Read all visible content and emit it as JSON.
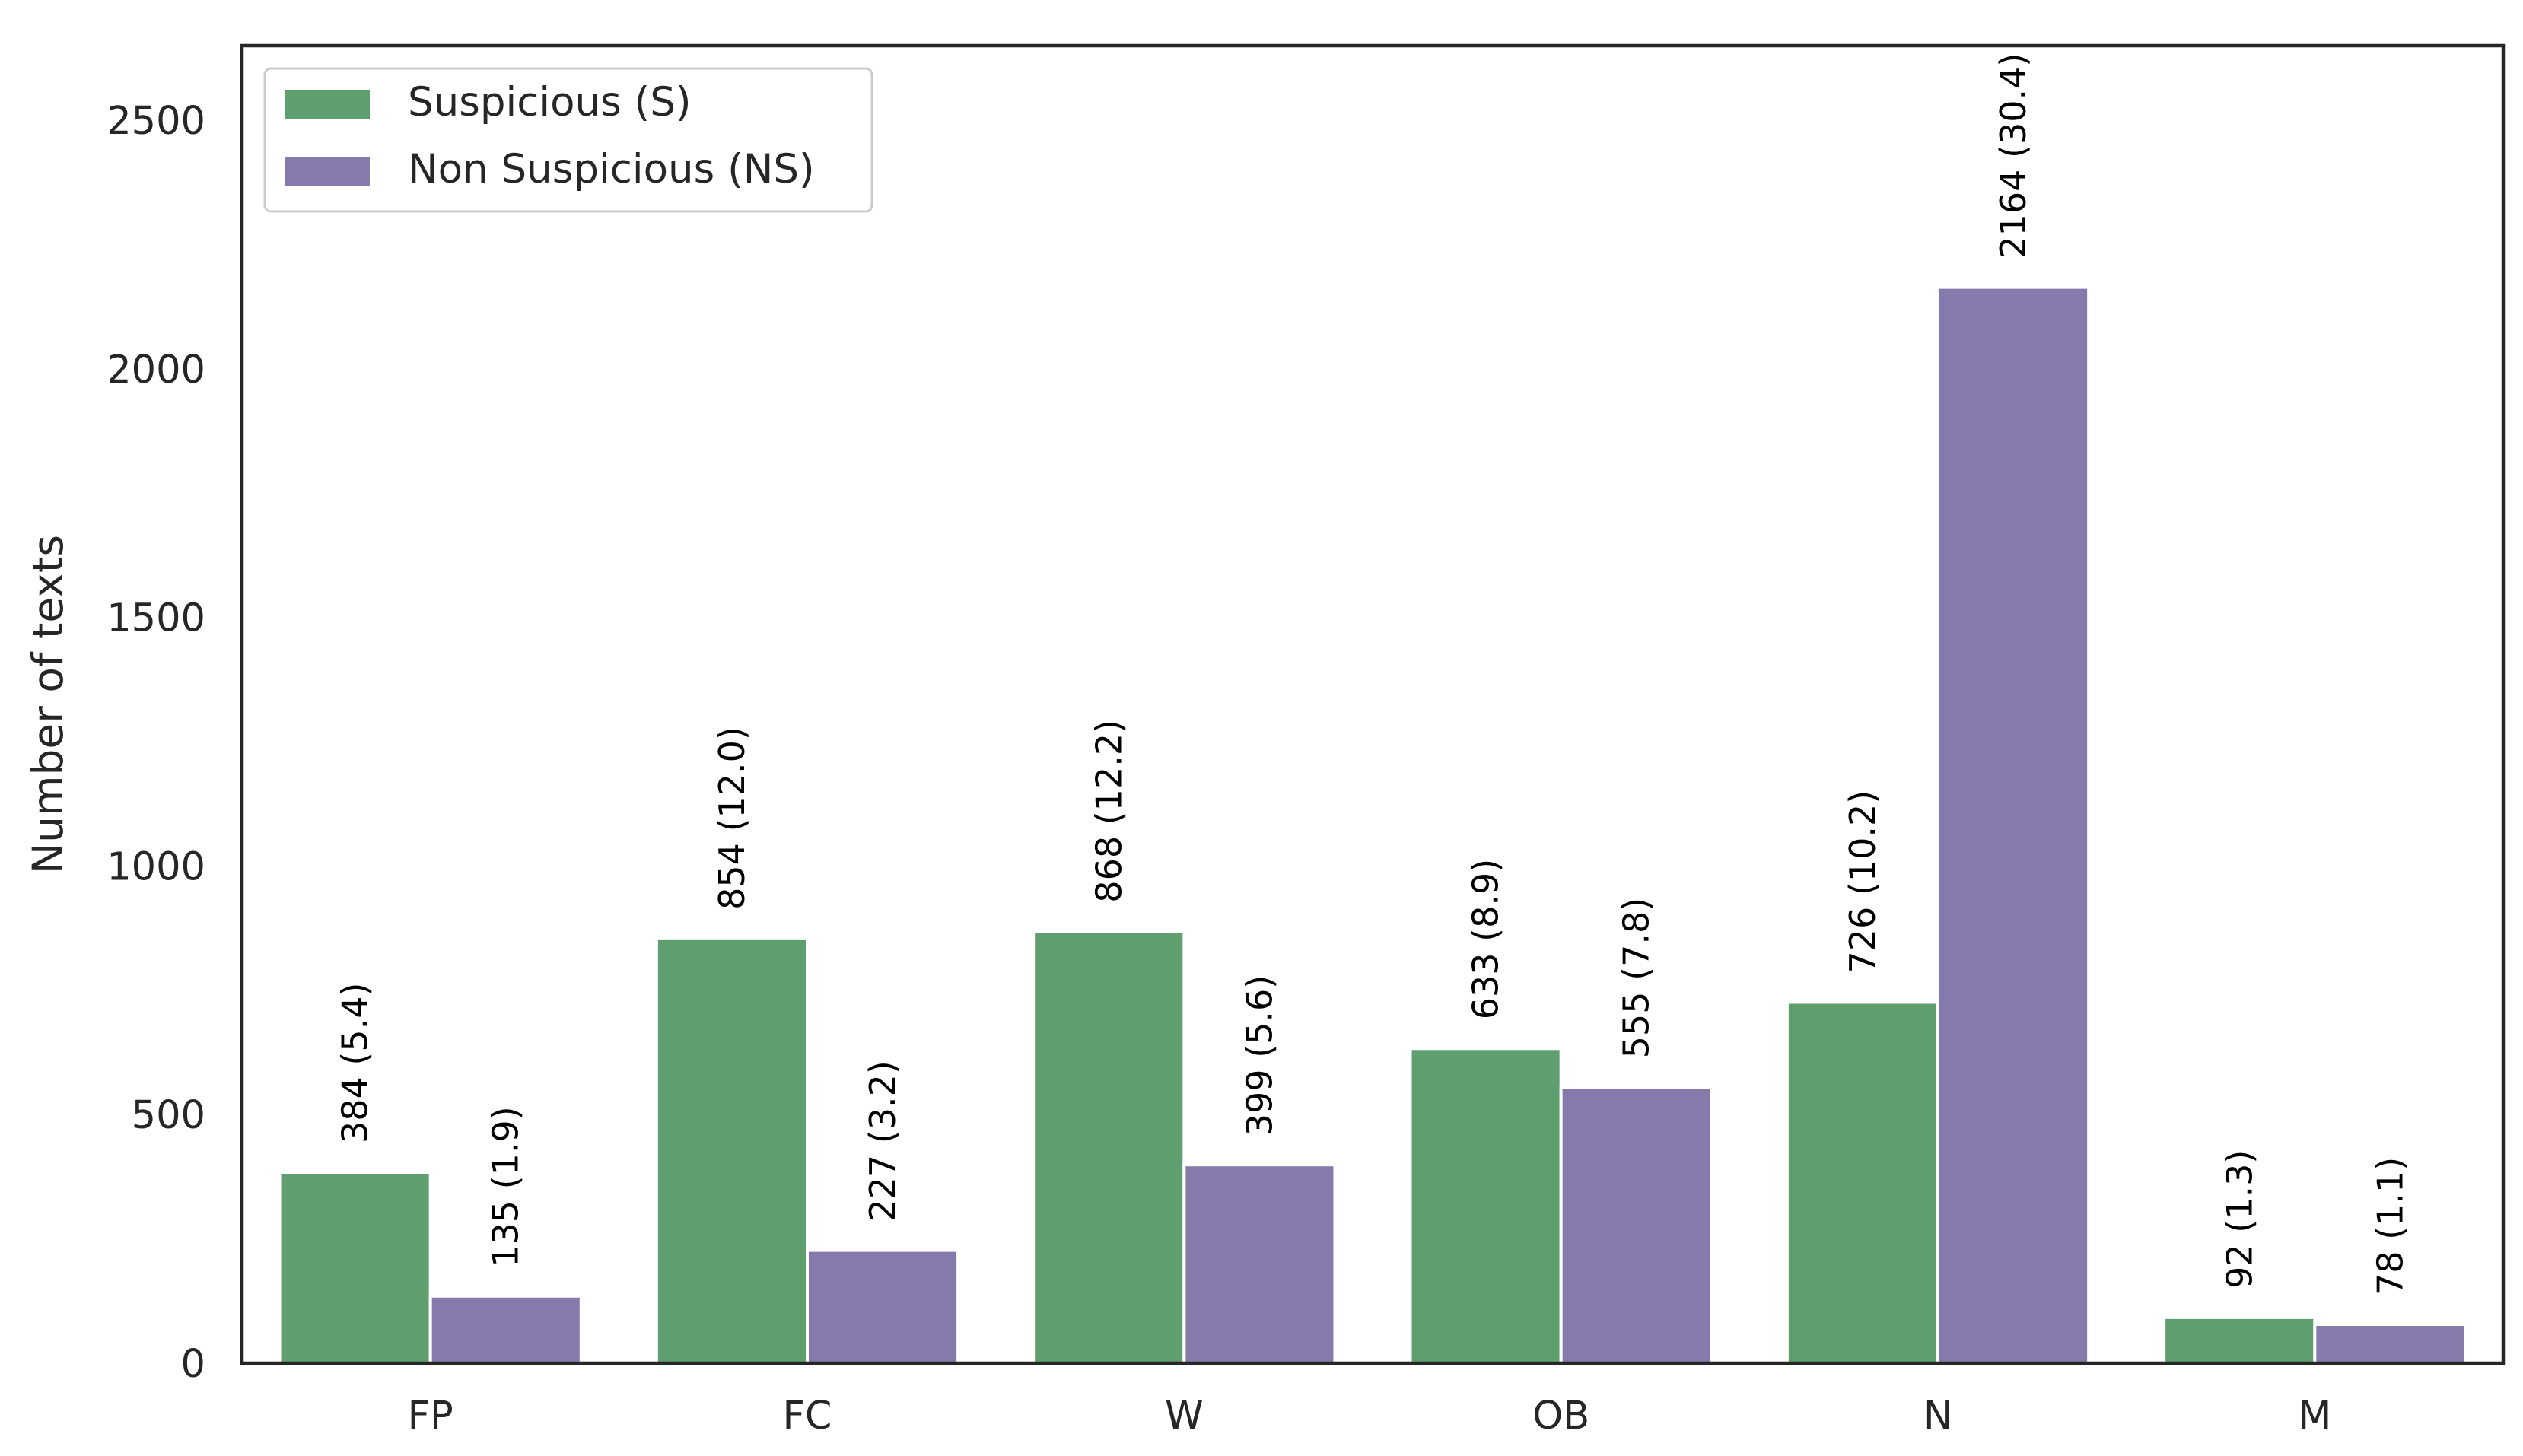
{
  "chart_data": {
    "type": "bar",
    "title": "",
    "xlabel": "",
    "ylabel": "Number of texts",
    "categories": [
      "FP",
      "FC",
      "W",
      "OB",
      "N",
      "M"
    ],
    "ylim": [
      0,
      2650
    ],
    "yticks": [
      0,
      500,
      1000,
      1500,
      2000,
      2500
    ],
    "grid": false,
    "legend_position": "top-left",
    "series": [
      {
        "name": "Suspicious (S)",
        "color": "#5f9e6e",
        "values": [
          384,
          854,
          868,
          633,
          726,
          92
        ],
        "labels": [
          "384 (5.4)",
          "854 (12.0)",
          "868 (12.2)",
          "633 (8.9)",
          "726 (10.2)",
          "92 (1.3)"
        ]
      },
      {
        "name": "Non Suspicious (NS)",
        "color": "#857aab",
        "values": [
          135,
          227,
          399,
          555,
          2164,
          78
        ],
        "labels": [
          "135 (1.9)",
          "227 (3.2)",
          "399 (5.6)",
          "555 (7.8)",
          "2164 (30.4)",
          "78 (1.1)"
        ]
      }
    ]
  }
}
